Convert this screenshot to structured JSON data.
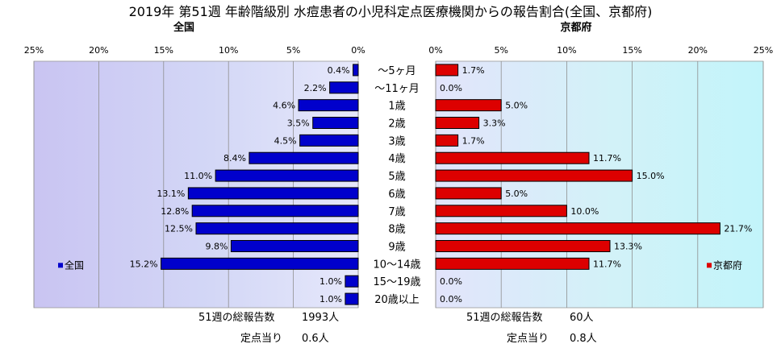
{
  "chart_data": {
    "type": "bar",
    "title": "2019年 第51週 年齢階級別 水痘患者の小児科定点医療機関からの報告割合(全国、京都府)",
    "categories": [
      "～5ヶ月",
      "～11ヶ月",
      "1歳",
      "2歳",
      "3歳",
      "4歳",
      "5歳",
      "6歳",
      "7歳",
      "8歳",
      "9歳",
      "10～14歳",
      "15～19歳",
      "20歳以上"
    ],
    "xticks": [
      "0%",
      "5%",
      "10%",
      "15%",
      "20%",
      "25%"
    ],
    "xlim": [
      0,
      25
    ],
    "orientation": "horizontal",
    "series": [
      {
        "name": "全国",
        "panel_title": "全国",
        "color": "#0000cc",
        "values": [
          0.4,
          2.2,
          4.6,
          3.5,
          4.5,
          8.4,
          11.0,
          13.1,
          12.8,
          12.5,
          9.8,
          15.2,
          1.0,
          1.0
        ],
        "labels": [
          "0.4%",
          "2.2%",
          "4.6%",
          "3.5%",
          "4.5%",
          "8.4%",
          "11.0%",
          "13.1%",
          "12.8%",
          "12.5%",
          "9.8%",
          "15.2%",
          "1.0%",
          "1.0%"
        ],
        "legend": "全国",
        "legend_position": "lower-left",
        "stats": {
          "total_label": "51週の総報告数",
          "total_value": "1993人",
          "per_label": "定点当り",
          "per_value": "0.6人"
        }
      },
      {
        "name": "京都府",
        "panel_title": "京都府",
        "color": "#dd0000",
        "values": [
          1.7,
          0.0,
          5.0,
          3.3,
          1.7,
          11.7,
          15.0,
          5.0,
          10.0,
          21.7,
          13.3,
          11.7,
          0.0,
          0.0
        ],
        "labels": [
          "1.7%",
          "0.0%",
          "5.0%",
          "3.3%",
          "1.7%",
          "11.7%",
          "15.0%",
          "5.0%",
          "10.0%",
          "21.7%",
          "13.3%",
          "11.7%",
          "0.0%",
          "0.0%"
        ],
        "legend": "京都府",
        "legend_position": "lower-right",
        "stats": {
          "total_label": "51週の総報告数",
          "total_value": "60人",
          "per_label": "定点当り",
          "per_value": "0.8人"
        }
      }
    ],
    "grid": true
  }
}
